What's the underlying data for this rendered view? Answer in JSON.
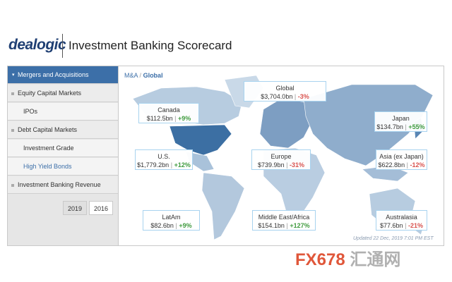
{
  "header": {
    "logo": "dealogic",
    "title": "Investment Banking Scorecard"
  },
  "sidebar": {
    "items": [
      {
        "label": "Mergers and Acquisitions",
        "level": 0,
        "selected": true
      },
      {
        "label": "Equity Capital Markets",
        "level": 0
      },
      {
        "label": "IPOs",
        "level": 1
      },
      {
        "label": "Debt Capital Markets",
        "level": 0
      },
      {
        "label": "Investment Grade",
        "level": 1
      },
      {
        "label": "High Yield Bonds",
        "level": 1,
        "link": true
      },
      {
        "label": "Investment Banking Revenue",
        "level": 0
      }
    ],
    "years": [
      "2019",
      "2016"
    ]
  },
  "breadcrumb": {
    "parent": "M&A",
    "separator": "/",
    "current": "Global"
  },
  "separator": "|",
  "callouts": [
    {
      "region": "Global",
      "value": "$3,704.0bn",
      "change": "-3%"
    },
    {
      "region": "Canada",
      "value": "$112.5bn",
      "change": "+9%"
    },
    {
      "region": "Japan",
      "value": "$134.7bn",
      "change": "+55%"
    },
    {
      "region": "U.S.",
      "value": "$1,779.2bn",
      "change": "+12%"
    },
    {
      "region": "Europe",
      "value": "$739.9bn",
      "change": "-31%"
    },
    {
      "region": "Asia (ex Japan)",
      "value": "$622.8bn",
      "change": "-12%"
    },
    {
      "region": "LatAm",
      "value": "$82.6bn",
      "change": "+9%"
    },
    {
      "region": "Middle East/Africa",
      "value": "$154.1bn",
      "change": "+127%"
    },
    {
      "region": "Australasia",
      "value": "$77.6bn",
      "change": "-21%"
    }
  ],
  "updated": "Updated 22 Dec, 2019 7:01 PM EST",
  "watermark": {
    "brand": "FX678",
    "name": "汇通网"
  }
}
